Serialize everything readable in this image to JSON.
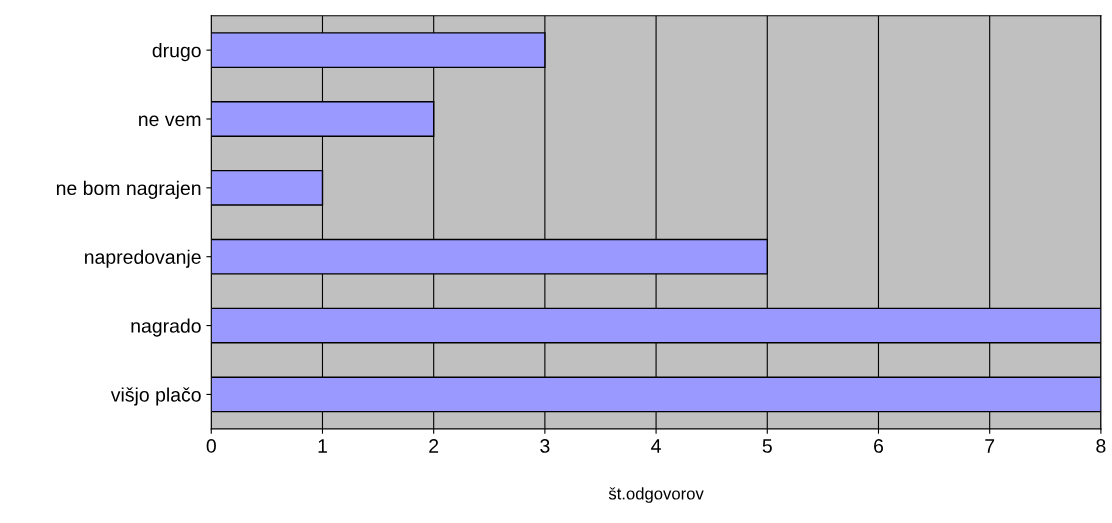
{
  "chart_data": {
    "type": "bar",
    "orientation": "horizontal",
    "xlabel": "št.odgovorov",
    "categories": [
      "drugo",
      "ne vem",
      "ne bom nagrajen",
      "napredovanje",
      "nagrado",
      "višjo plačo"
    ],
    "values": [
      3,
      2,
      1,
      5,
      8,
      8
    ],
    "color": "#9999ff",
    "xlim": [
      0,
      8
    ],
    "xticks": [
      0,
      1,
      2,
      3,
      4,
      5,
      6,
      7,
      8
    ],
    "grid": "x",
    "legend": false
  }
}
